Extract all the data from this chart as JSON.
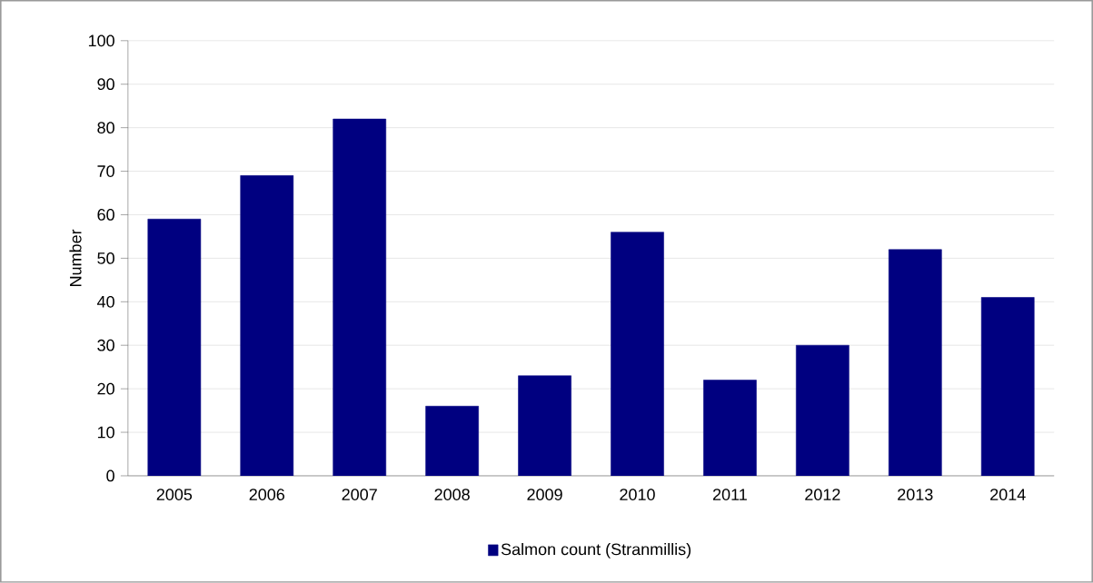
{
  "chart_data": {
    "type": "bar",
    "ylabel": "Number",
    "categories": [
      "2005",
      "2006",
      "2007",
      "2008",
      "2009",
      "2010",
      "2011",
      "2012",
      "2013",
      "2014"
    ],
    "series": [
      {
        "name": "Salmon count (Stranmillis)",
        "color": "#000080",
        "values": [
          59,
          69,
          82,
          16,
          23,
          56,
          22,
          30,
          52,
          41
        ]
      }
    ],
    "ylim": [
      0,
      100
    ],
    "yticks": [
      0,
      10,
      20,
      30,
      40,
      50,
      60,
      70,
      80,
      90,
      100
    ],
    "grid": "y",
    "legend": "bottom"
  }
}
